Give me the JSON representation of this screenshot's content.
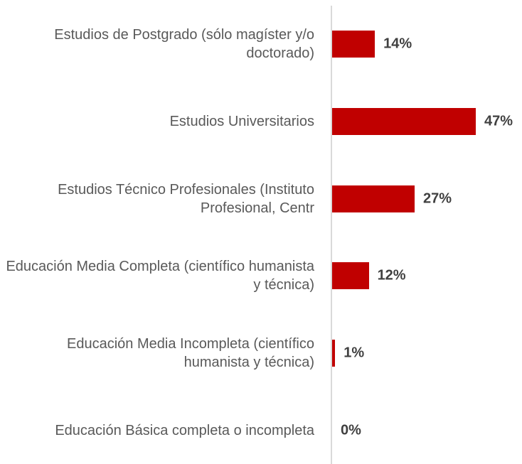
{
  "chart_data": {
    "type": "bar",
    "orientation": "horizontal",
    "categories": [
      "Estudios de Postgrado (sólo magíster y/o doctorado)",
      "Estudios Universitarios",
      "Estudios Técnico Profesionales (Instituto Profesional, Centr",
      "Educación Media Completa (científico humanista y técnica)",
      "Educación Media Incompleta (científico humanista y técnica)",
      "Educación Básica completa o incompleta"
    ],
    "values": [
      14,
      47,
      27,
      12,
      1,
      0
    ],
    "value_labels": [
      "14%",
      "47%",
      "27%",
      "12%",
      "1%",
      "0%"
    ],
    "color": "#c00000"
  }
}
